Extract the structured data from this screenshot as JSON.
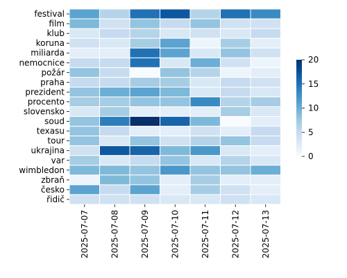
{
  "chart_data": {
    "type": "heatmap",
    "rows": [
      "festival",
      "film",
      "klub",
      "koruna",
      "miliarda",
      "nemocnice",
      "požár",
      "praha",
      "prezident",
      "procento",
      "slovensko",
      "soud",
      "texasu",
      "tour",
      "ukrajina",
      "var",
      "wimbledon",
      "zbraň",
      "česko",
      "řidič"
    ],
    "columns": [
      "2025-07-07",
      "2025-07-08",
      "2025-07-09",
      "2025-07-10",
      "2025-07-11",
      "2025-07-12",
      "2025-07-13"
    ],
    "values": [
      [
        11,
        6,
        15,
        17,
        6,
        15,
        13
      ],
      [
        9,
        4,
        8,
        5,
        8,
        4,
        4
      ],
      [
        3,
        5,
        6,
        3,
        4,
        3,
        5
      ],
      [
        4,
        3,
        7,
        11,
        1,
        7,
        2
      ],
      [
        2,
        2,
        15,
        11,
        3,
        8,
        4
      ],
      [
        5,
        5,
        15,
        3,
        10,
        4,
        1
      ],
      [
        8,
        5,
        0,
        8,
        6,
        1,
        2
      ],
      [
        5,
        5,
        7,
        7,
        3,
        5,
        4
      ],
      [
        8,
        10,
        11,
        9,
        3,
        5,
        3
      ],
      [
        7,
        7,
        8,
        8,
        13,
        6,
        7
      ],
      [
        3,
        7,
        2,
        2,
        2,
        7,
        3
      ],
      [
        8,
        14,
        20,
        16,
        9,
        0,
        2
      ],
      [
        8,
        5,
        2,
        2,
        4,
        2,
        5
      ],
      [
        8,
        3,
        8,
        4,
        6,
        8,
        5
      ],
      [
        4,
        17,
        16,
        9,
        12,
        3,
        2
      ],
      [
        7,
        3,
        5,
        8,
        3,
        6,
        3
      ],
      [
        9,
        9,
        8,
        12,
        8,
        8,
        10
      ],
      [
        1,
        9,
        8,
        2,
        7,
        2,
        2
      ],
      [
        11,
        5,
        11,
        2,
        7,
        4,
        2
      ],
      [
        4,
        4,
        4,
        3,
        3,
        4,
        3
      ]
    ],
    "colorbar": {
      "min": 0,
      "max": 20,
      "ticks": [
        "0",
        "5",
        "10",
        "15",
        "20"
      ],
      "colormap": "Blues"
    }
  }
}
